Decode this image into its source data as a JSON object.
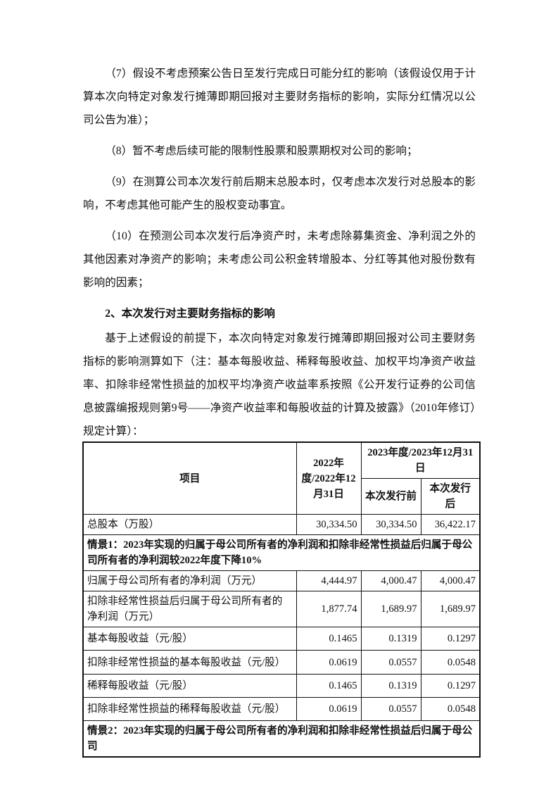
{
  "paragraphs": {
    "p7": "（7）假设不考虑预案公告日至发行完成日可能分红的影响（该假设仅用于计算本次向特定对象发行摊薄即期回报对主要财务指标的影响，实际分红情况以公司公告为准）；",
    "p8": "（8）暂不考虑后续可能的限制性股票和股票期权对公司的影响；",
    "p9": "（9）在测算公司本次发行前后期末总股本时，仅考虑本次发行对总股本的影响，不考虑其他可能产生的股权变动事宜。",
    "p10": "（10）在预测公司本次发行后净资产时，未考虑除募集资金、净利润之外的其他因素对净资产的影响；未考虑公司公积金转增股本、分红等其他对股份数有影响的因素；",
    "heading": "2、本次发行对主要财务指标的影响",
    "intro": "基于上述假设的前提下，本次向特定对象发行摊薄即期回报对公司主要财务指标的影响测算如下（注：基本每股收益、稀释每股收益、加权平均净资产收益率、扣除非经常性损益的加权平均净资产收益率系按照《公开发行证券的公司信息披露编报规则第9号——净资产收益率和每股收益的计算及披露》（2010年修订）规定计算）："
  },
  "table": {
    "header": {
      "item": "项目",
      "y2022": "2022年度/2022年12月31日",
      "y2023": "2023年度/2023年12月31日",
      "before": "本次发行前",
      "after": "本次发行后"
    },
    "total_shares": {
      "label": "总股本（万股）",
      "v2022": "30,334.50",
      "before": "30,334.50",
      "after": "36,422.17"
    },
    "scenario1": "情景1：2023年实现的归属于母公司所有者的净利润和扣除非经常性损益后归属于母公司所有者的净利润较2022年度下降10%",
    "rows": [
      {
        "label": "归属于母公司所有者的净利润（万元）",
        "v2022": "4,444.97",
        "before": "4,000.47",
        "after": "4,000.47"
      },
      {
        "label": "扣除非经常性损益后归属于母公司所有者的净利润（万元）",
        "v2022": "1,877.74",
        "before": "1,689.97",
        "after": "1,689.97"
      },
      {
        "label": "基本每股收益（元/股）",
        "v2022": "0.1465",
        "before": "0.1319",
        "after": "0.1297"
      },
      {
        "label": "扣除非经常性损益的基本每股收益（元/股）",
        "v2022": "0.0619",
        "before": "0.0557",
        "after": "0.0548"
      },
      {
        "label": "稀释每股收益（元/股）",
        "v2022": "0.1465",
        "before": "0.1319",
        "after": "0.1297"
      },
      {
        "label": "扣除非经常性损益的稀释每股收益（元/股）",
        "v2022": "0.0619",
        "before": "0.0557",
        "after": "0.0548"
      }
    ],
    "scenario2": "情景2：2023年实现的归属于母公司所有者的净利润和扣除非经常性损益后归属于母公司"
  }
}
